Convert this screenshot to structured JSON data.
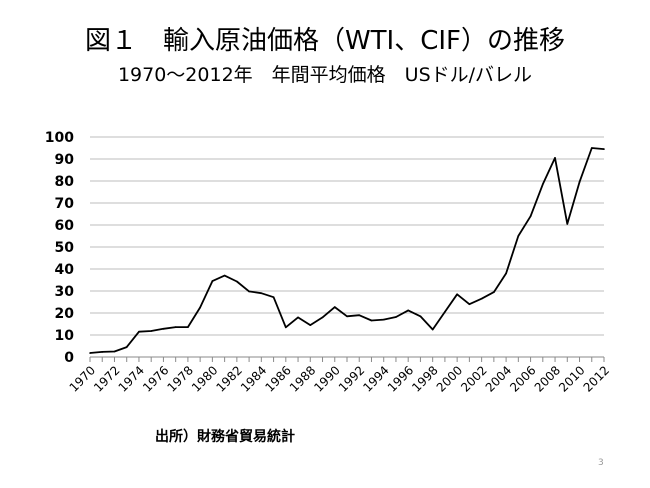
{
  "slide": {
    "title": "図１　輸入原油価格（WTI、CIF）の推移",
    "subtitle": "1970～2012年　年間平均価格　USドル/バレル",
    "source": "出所）財務省貿易統計",
    "page_number": "3"
  },
  "chart_data": {
    "type": "line",
    "title": "",
    "xlabel": "",
    "ylabel": "",
    "ylim": [
      0,
      100
    ],
    "yticks": [
      0,
      10,
      20,
      30,
      40,
      50,
      60,
      70,
      80,
      90,
      100
    ],
    "xtick_labels": [
      "1970",
      "1972",
      "1974",
      "1976",
      "1978",
      "1980",
      "1982",
      "1984",
      "1986",
      "1988",
      "1990",
      "1992",
      "1994",
      "1996",
      "1998",
      "2000",
      "2002",
      "2004",
      "2006",
      "2008",
      "2010",
      "2012"
    ],
    "grid": "horizontal",
    "legend": "none",
    "line_color": "#000000",
    "series": [
      {
        "x": [
          1970,
          1971,
          1972,
          1973,
          1974,
          1975,
          1976,
          1977,
          1978,
          1979,
          1980,
          1981,
          1982,
          1983,
          1984,
          1985,
          1986,
          1987,
          1988,
          1989,
          1990,
          1991,
          1992,
          1993,
          1994,
          1995,
          1996,
          1997,
          1998,
          1999,
          2000,
          2001,
          2002,
          2003,
          2004,
          2005,
          2006,
          2007,
          2008,
          2009,
          2010,
          2011,
          2012
        ],
        "values": [
          1.8,
          2.3,
          2.5,
          4.5,
          11.5,
          11.8,
          12.8,
          13.6,
          13.6,
          22.5,
          34.5,
          37.0,
          34.3,
          29.8,
          29.0,
          27.2,
          13.5,
          18.0,
          14.5,
          18.0,
          22.7,
          18.5,
          19.0,
          16.6,
          17.0,
          18.2,
          21.2,
          18.5,
          12.5,
          20.5,
          28.5,
          24.0,
          26.5,
          29.5,
          38.0,
          55.0,
          64.0,
          78.5,
          90.5,
          60.5,
          79.5,
          95.0,
          94.5
        ]
      }
    ]
  }
}
